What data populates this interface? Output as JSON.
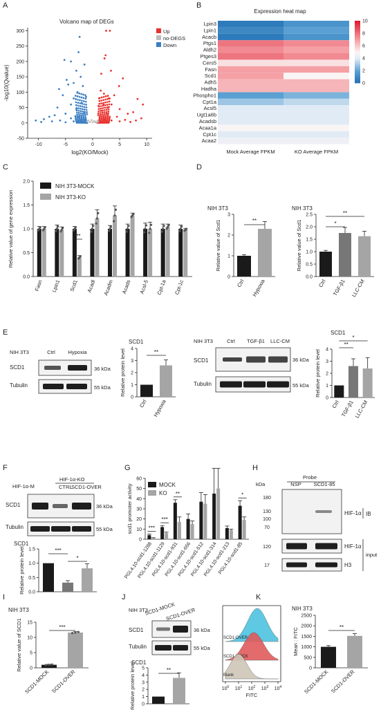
{
  "panels": {
    "A": "A",
    "B": "B",
    "C": "C",
    "D": "D",
    "E": "E",
    "F": "F",
    "G": "G",
    "H": "H",
    "I": "I",
    "J": "J",
    "K": "K"
  },
  "colors": {
    "up": "#e8322e",
    "nodegs": "#bdbdbd",
    "down": "#3b7fc4",
    "black": "#1a1a1a",
    "grey": "#a5a5a5",
    "blot_bg": "#f2f2f2"
  },
  "chart_data": [
    {
      "id": "A",
      "type": "scatter",
      "title": "Volcano map of DEGs",
      "xlabel": "log2(KO/Mock)",
      "ylabel": "-log10(Qvalue)",
      "xlim": [
        -12,
        11
      ],
      "ylim": [
        -50,
        310
      ],
      "xticks": [
        "-10",
        "-5",
        "0",
        "5",
        "10"
      ],
      "yticks": [
        "-50",
        "0",
        "50",
        "100",
        "150",
        "200",
        "250",
        "300"
      ],
      "legend": [
        "Up",
        "no-DEGS",
        "Down"
      ],
      "series": [
        {
          "name": "Up",
          "points": [
            [
              2.2,
              210
            ],
            [
              2.5,
              300
            ],
            [
              3.2,
              300
            ],
            [
              2.4,
              220
            ],
            [
              1.6,
              160
            ],
            [
              3.4,
              170
            ],
            [
              4.9,
              120
            ],
            [
              5.6,
              145
            ],
            [
              8.3,
              78
            ],
            [
              9.3,
              60
            ],
            [
              2.1,
              95
            ],
            [
              1.5,
              105
            ],
            [
              3,
              80
            ],
            [
              4,
              90
            ],
            [
              2,
              60
            ],
            [
              3.5,
              60
            ],
            [
              5,
              45
            ],
            [
              6.5,
              30
            ],
            [
              7.5,
              35
            ],
            [
              1.2,
              80
            ],
            [
              1.8,
              40
            ],
            [
              2.6,
              30
            ],
            [
              4.5,
              20
            ],
            [
              6,
              10
            ],
            [
              8,
              8
            ],
            [
              9,
              15
            ],
            [
              1.3,
              20
            ],
            [
              2.2,
              12
            ],
            [
              3.5,
              8
            ],
            [
              5,
              5
            ],
            [
              1.5,
              4
            ],
            [
              3,
              2
            ],
            [
              7,
              3
            ],
            [
              1.1,
              55
            ],
            [
              2.8,
              50
            ]
          ]
        },
        {
          "name": "no-DEGS",
          "points": [
            [
              -0.5,
              3
            ],
            [
              0,
              2
            ],
            [
              0.5,
              3
            ],
            [
              -1,
              5
            ],
            [
              1,
              4
            ],
            [
              -0.8,
              8
            ],
            [
              0.3,
              6
            ],
            [
              0.7,
              1
            ],
            [
              -0.2,
              9
            ],
            [
              0.9,
              7
            ]
          ]
        },
        {
          "name": "Down",
          "points": [
            [
              -2.4,
              280
            ],
            [
              -4,
              200
            ],
            [
              -5.2,
              205
            ],
            [
              -1.5,
              190
            ],
            [
              -3,
              170
            ],
            [
              -2.2,
              150
            ],
            [
              -6.2,
              110
            ],
            [
              -3.5,
              130
            ],
            [
              -4.5,
              125
            ],
            [
              -1.8,
              120
            ],
            [
              -2.8,
              100
            ],
            [
              -5.5,
              90
            ],
            [
              -3.5,
              80
            ],
            [
              -1.2,
              85
            ],
            [
              -4,
              60
            ],
            [
              -2,
              65
            ],
            [
              -6.5,
              50
            ],
            [
              -3,
              45
            ],
            [
              -8,
              20
            ],
            [
              -10.5,
              8
            ],
            [
              -9,
              12
            ],
            [
              -7,
              25
            ],
            [
              -5,
              30
            ],
            [
              -1.5,
              35
            ],
            [
              -2.5,
              20
            ],
            [
              -4,
              15
            ],
            [
              -6,
              8
            ],
            [
              -3.5,
              5
            ],
            [
              -1.3,
              10
            ],
            [
              -2,
              3
            ],
            [
              -5,
              2
            ],
            [
              -7.5,
              5
            ],
            [
              -9.5,
              3
            ],
            [
              -4.8,
              140
            ],
            [
              -2.6,
              230
            ]
          ]
        }
      ]
    },
    {
      "id": "B",
      "type": "heatmap",
      "title": "Expression heat map",
      "rows": [
        "Lpin3",
        "Lpin1",
        "Acacb",
        "Ptgs1",
        "Aldh2",
        "Ptges3",
        "Cers5",
        "Fasn",
        "Scd1",
        "Adh5",
        "Hadha",
        "Phospho1",
        "Cpt1a",
        "Acsl5",
        "Ugt1a6b",
        "Acadsb",
        "Acaa1a",
        "Cpt1c",
        "Acaa2"
      ],
      "columns": [
        "Mock Average FPKM",
        "KO Average FPKM"
      ],
      "values": [
        [
          0.5,
          1.5
        ],
        [
          1,
          2
        ],
        [
          0.5,
          1.5
        ],
        [
          8,
          7.5
        ],
        [
          7.5,
          7
        ],
        [
          8,
          7.5
        ],
        [
          5.5,
          5.5
        ],
        [
          7,
          7
        ],
        [
          7,
          5
        ],
        [
          6.5,
          6.5
        ],
        [
          6.5,
          6.5
        ],
        [
          2,
          2.5
        ],
        [
          3,
          3.5
        ],
        [
          4,
          4
        ],
        [
          4,
          4
        ],
        [
          4,
          4
        ],
        [
          5,
          5
        ],
        [
          4,
          4
        ],
        [
          4.5,
          4.5
        ]
      ],
      "scale": {
        "min": 0,
        "max": 10,
        "ticks": [
          "0",
          "2",
          "4",
          "6",
          "8",
          "10"
        ]
      }
    },
    {
      "id": "C",
      "type": "bar",
      "ylabel": "Relative value of gene expression",
      "categories": [
        "Fasn",
        "Lpin1",
        "Scd1",
        "Acadl",
        "Acadm",
        "Acads",
        "Acsl-5",
        "Cpt-1a",
        "Cpt-1c"
      ],
      "highlight": "Scd1",
      "ylim": [
        0,
        2.0
      ],
      "yticks": [
        "0.0",
        "0.5",
        "1.0",
        "1.5",
        "2.0"
      ],
      "series": [
        {
          "name": "NIH 3T3-MOCK",
          "values": [
            1,
            1,
            1,
            1,
            1,
            1,
            1,
            1,
            1
          ],
          "errors": [
            0.05,
            0.08,
            0.05,
            0.1,
            0.07,
            0.1,
            0.12,
            0.1,
            0.08
          ]
        },
        {
          "name": "NIH 3T3-KO",
          "values": [
            1,
            0.98,
            0.4,
            1.22,
            1.28,
            1.28,
            1.0,
            1.04,
            0.98
          ],
          "errors": [
            0.05,
            0.06,
            0.04,
            0.18,
            0.2,
            0.05,
            0.14,
            0.06,
            0.03
          ]
        }
      ],
      "annotations": [
        {
          "category": "Scd1",
          "text": "***"
        }
      ]
    },
    {
      "id": "D1",
      "type": "bar",
      "title": "NIH 3T3",
      "ylabel": "Relative value of Scd1",
      "categories": [
        "Ctrl",
        "Hypoxia"
      ],
      "values": [
        1.0,
        2.3
      ],
      "errors": [
        0.05,
        0.35
      ],
      "ylim": [
        0,
        3
      ],
      "yticks": [
        "0",
        "1",
        "2",
        "3"
      ],
      "annotations": [
        "**"
      ]
    },
    {
      "id": "D2",
      "type": "bar",
      "title": "NIH 3T3",
      "ylabel": "Relative value of Scd1",
      "categories": [
        "Ctrl",
        "TGF-β1",
        "LLC-CM"
      ],
      "values": [
        1.0,
        1.75,
        1.62
      ],
      "errors": [
        0.05,
        0.22,
        0.2
      ],
      "ylim": [
        0,
        2.5
      ],
      "yticks": [
        "0.0",
        "0.5",
        "1.0",
        "1.5",
        "2.0",
        "2.5"
      ],
      "annotations": [
        "*",
        "**"
      ]
    },
    {
      "id": "E1",
      "type": "bar",
      "title": "SCD1",
      "ylabel": "Relative protein level",
      "categories": [
        "Ctrl",
        "Hypoxia"
      ],
      "values": [
        1.0,
        2.6
      ],
      "errors": [
        0,
        0.45
      ],
      "ylim": [
        0,
        4
      ],
      "yticks": [
        "0",
        "1",
        "2",
        "3",
        "4"
      ],
      "annotations": [
        "**"
      ]
    },
    {
      "id": "E2",
      "type": "bar",
      "title": "SCD1",
      "ylabel": "Relative protein level",
      "categories": [
        "Ctrl",
        "TGF-β1",
        "LLC-CM"
      ],
      "values": [
        1.0,
        2.6,
        2.4
      ],
      "errors": [
        0,
        0.6,
        0.9
      ],
      "ylim": [
        0,
        4
      ],
      "yticks": [
        "0",
        "1",
        "2",
        "3",
        "4"
      ],
      "annotations": [
        "**",
        "*"
      ]
    },
    {
      "id": "F1",
      "type": "bar",
      "title": "SCD1",
      "ylabel": "Relative protein level",
      "categories": [
        "HIF-1α-M",
        "CTRL",
        "SCD1-OVER"
      ],
      "values": [
        1.0,
        0.32,
        0.82
      ],
      "errors": [
        0,
        0.07,
        0.16
      ],
      "ylim": [
        0,
        1.5
      ],
      "yticks": [
        "0.0",
        "0.5",
        "1.0",
        "1.5"
      ],
      "annotations": [
        "***",
        "*"
      ]
    },
    {
      "id": "G",
      "type": "bar",
      "ylabel": "scd1 promoter activity",
      "categories": [
        "PGL4.10-scd1-1288",
        "PGL4.10-scd1-1129",
        "PGL4.10-scd1-931",
        "PGL4.10-scd1-666",
        "PGL4.10-scd1-512",
        "PGL4.10-scd1-314",
        "PGL4.10-scd1-213",
        "PGL4.10-scd1-85"
      ],
      "ylim": [
        0,
        60
      ],
      "yticks": [
        "0",
        "10",
        "20",
        "30",
        "40",
        "50",
        "60"
      ],
      "series": [
        {
          "name": "MOCK",
          "values": [
            4,
            12,
            36,
            20,
            37,
            45,
            11,
            33
          ],
          "errors": [
            1,
            1.5,
            3,
            5,
            9,
            25,
            2,
            5
          ]
        },
        {
          "name": "KO",
          "values": [
            1,
            6,
            17,
            15,
            35,
            50,
            9,
            19
          ],
          "errors": [
            0.5,
            1,
            5,
            3,
            9,
            20,
            1,
            3
          ]
        }
      ],
      "annotations": [
        "***",
        "***",
        "**",
        "",
        "",
        "",
        "",
        "*"
      ]
    },
    {
      "id": "I",
      "type": "bar",
      "title": "NIH 3T3",
      "ylabel": "Relative value of SCD1",
      "categories": [
        "SCD1-MOCK",
        "SCD1-OVER"
      ],
      "values": [
        1.0,
        11.6
      ],
      "errors": [
        0.15,
        0.3
      ],
      "ylim": [
        0,
        15
      ],
      "yticks": [
        "0",
        "5",
        "10",
        "15"
      ],
      "annotations": [
        "***"
      ]
    },
    {
      "id": "J1",
      "type": "bar",
      "title": "SCD1",
      "ylabel": "Relative protein level",
      "categories": [
        "SCD1-MOCK",
        "SCD1-OVER"
      ],
      "values": [
        1.0,
        3.6
      ],
      "errors": [
        0,
        0.7
      ],
      "ylim": [
        0,
        5
      ],
      "yticks": [
        "0",
        "1",
        "2",
        "3",
        "4",
        "5"
      ],
      "annotations": [
        "**"
      ]
    },
    {
      "id": "K2",
      "type": "bar",
      "title": "NIH 3T3",
      "ylabel": "Mean : FITC",
      "categories": [
        "SCD1-MOCK",
        "SCD1-OVER"
      ],
      "values": [
        1000,
        1520
      ],
      "errors": [
        60,
        110
      ],
      "ylim": [
        0,
        2500
      ],
      "yticks": [
        "0",
        "500",
        "1000",
        "1500",
        "2000",
        "2500"
      ],
      "annotations": [
        "**"
      ]
    }
  ],
  "blots": {
    "E1": {
      "cell": "NIH 3T3",
      "lanes": [
        "Ctrl",
        "Hypoxia"
      ],
      "rows": [
        "SCD1",
        "Tubulin"
      ],
      "sizes": [
        "36 kDa",
        "55 kDa"
      ]
    },
    "E2": {
      "cell": "NIH 3T3",
      "lanes": [
        "Ctrl",
        "TGF-β1",
        "LLC-CM"
      ],
      "rows": [
        "SCD1",
        "Tubulin"
      ],
      "sizes": [
        "36 kDa",
        "55 kDa"
      ]
    },
    "F": {
      "group_left": "HIF-1α-M",
      "group_right": "HIF-1α-KO",
      "lanes": [
        "CTRL",
        "SCD1-OVER"
      ],
      "rows": [
        "SCD1",
        "Tubulin"
      ],
      "sizes": [
        "36 kDa",
        "55 kDa"
      ]
    },
    "H": {
      "probe": "Probe",
      "kda": "kDa",
      "lanes": [
        "NSP",
        "SCD1-85"
      ],
      "markers": [
        "180",
        "130",
        "100",
        "70",
        "120",
        "17"
      ],
      "rows": [
        "HIF-1α",
        "HIF-1α",
        "H3"
      ],
      "ib": "IB",
      "input": "input"
    },
    "J": {
      "cell": "NIH 3T3",
      "lanes": [
        "SCD1-MOCK",
        "SCD1-OVER"
      ],
      "rows": [
        "SCD1",
        "Tubulin"
      ],
      "sizes": [
        "36 kDa",
        "55 kDa"
      ]
    }
  },
  "flow": {
    "xlabel": "FITC",
    "xticks": [
      "10",
      "10",
      "10",
      "10",
      "10"
    ],
    "xexp": [
      "0",
      "1",
      "2",
      "3",
      "4"
    ],
    "tracks": [
      {
        "label": "SCD1-OVER",
        "color": "#4ec3e0"
      },
      {
        "label": "SCD1-MOCK",
        "color": "#e05b5b"
      },
      {
        "label": "Blank",
        "color": "#cfc6b8"
      }
    ]
  }
}
